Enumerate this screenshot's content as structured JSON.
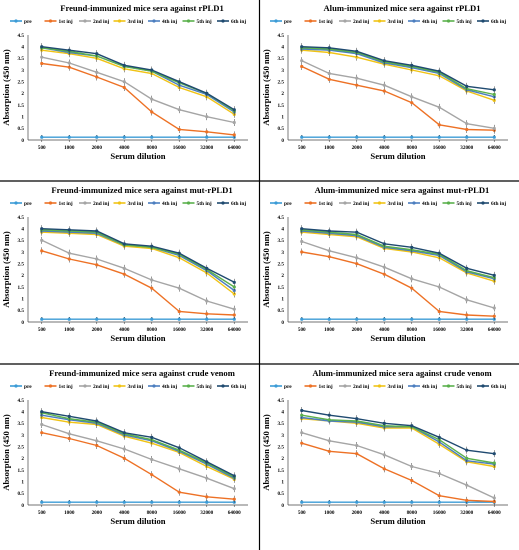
{
  "chart_data": [
    {
      "type": "line",
      "title": "Freund-immunized mice sera against rPLD1",
      "xlabel": "Serum dilution",
      "ylabel": "Absorption (450 nm)",
      "categories": [
        "500",
        "1000",
        "2000",
        "4000",
        "8000",
        "16000",
        "32000",
        "64000"
      ],
      "ylim": [
        0,
        4.5
      ],
      "yticks": [
        "0",
        "0.5",
        "1",
        "1.5",
        "2",
        "2.5",
        "3",
        "3.5",
        "4",
        "4.5"
      ],
      "category_marks": [
        "1",
        "1",
        "1",
        "1",
        "1",
        "1",
        "1",
        "1"
      ],
      "legend_position": "top",
      "series": [
        {
          "name": "pre",
          "color": "#3b9bd6",
          "values": [
            0.12,
            0.12,
            0.12,
            0.12,
            0.12,
            0.12,
            0.12,
            0.12
          ]
        },
        {
          "name": "1st inj",
          "color": "#ed7125",
          "values": [
            3.28,
            3.12,
            2.7,
            2.25,
            1.2,
            0.45,
            0.35,
            0.22
          ]
        },
        {
          "name": "2nd inj",
          "color": "#a5a5a5",
          "values": [
            3.55,
            3.3,
            2.9,
            2.5,
            1.75,
            1.3,
            1.0,
            0.75
          ]
        },
        {
          "name": "3rd inj",
          "color": "#f0c315",
          "values": [
            3.85,
            3.7,
            3.5,
            3.05,
            2.85,
            2.25,
            1.85,
            1.1
          ]
        },
        {
          "name": "4th inj",
          "color": "#4c7ebf",
          "values": [
            3.95,
            3.75,
            3.6,
            3.15,
            2.95,
            2.35,
            1.95,
            1.2
          ]
        },
        {
          "name": "5th inj",
          "color": "#5ab04c",
          "values": [
            3.95,
            3.8,
            3.6,
            3.15,
            2.95,
            2.45,
            2.0,
            1.25
          ]
        },
        {
          "name": "6th inj",
          "color": "#1f4a70",
          "values": [
            4.0,
            3.85,
            3.7,
            3.2,
            3.0,
            2.5,
            2.0,
            1.3
          ]
        }
      ]
    },
    {
      "type": "line",
      "title": "Alum-immunized mice sera against rPLD1",
      "xlabel": "Serum dilution",
      "ylabel": "Absorption (450 nm)",
      "categories": [
        "500",
        "1000",
        "2000",
        "4000",
        "8000",
        "16000",
        "32000",
        "64000"
      ],
      "ylim": [
        0,
        4.5
      ],
      "yticks": [
        "0",
        "0.5",
        "1",
        "1.5",
        "2",
        "2.5",
        "3",
        "3.5",
        "4",
        "4.5"
      ],
      "category_marks": [
        "1",
        "1",
        "1",
        "1",
        "1",
        "1",
        "1",
        "1"
      ],
      "legend_position": "top",
      "series": [
        {
          "name": "pre",
          "color": "#3b9bd6",
          "values": [
            0.12,
            0.12,
            0.12,
            0.12,
            0.12,
            0.12,
            0.12,
            0.12
          ]
        },
        {
          "name": "1st inj",
          "color": "#ed7125",
          "values": [
            3.15,
            2.6,
            2.35,
            2.1,
            1.6,
            0.65,
            0.45,
            0.42
          ]
        },
        {
          "name": "2nd inj",
          "color": "#a5a5a5",
          "values": [
            3.4,
            2.85,
            2.65,
            2.35,
            1.85,
            1.4,
            0.7,
            0.5
          ]
        },
        {
          "name": "3rd inj",
          "color": "#f0c315",
          "values": [
            3.85,
            3.75,
            3.55,
            3.25,
            3.0,
            2.75,
            2.1,
            1.7
          ]
        },
        {
          "name": "4th inj",
          "color": "#4c7ebf",
          "values": [
            3.9,
            3.85,
            3.7,
            3.3,
            3.1,
            2.85,
            2.15,
            1.85
          ]
        },
        {
          "name": "5th inj",
          "color": "#5ab04c",
          "values": [
            3.95,
            3.9,
            3.75,
            3.35,
            3.15,
            2.9,
            2.2,
            1.95
          ]
        },
        {
          "name": "6th inj",
          "color": "#1f4a70",
          "values": [
            4.0,
            3.95,
            3.8,
            3.4,
            3.2,
            2.95,
            2.3,
            2.15
          ]
        }
      ]
    },
    {
      "type": "line",
      "title": "Freund-immunized mice sera against mut-rPLD1",
      "xlabel": "Serum dilution",
      "ylabel": "Absorption (450 nm)",
      "categories": [
        "500",
        "1000",
        "2000",
        "4000",
        "8000",
        "16000",
        "32000",
        "64000"
      ],
      "ylim": [
        0,
        4.5
      ],
      "yticks": [
        "0",
        "0.5",
        "1",
        "1.5",
        "2",
        "2.5",
        "3",
        "3.5",
        "4",
        "4.5"
      ],
      "category_marks": [
        "1",
        "1",
        "1",
        "1",
        "1",
        "1",
        "1",
        "1"
      ],
      "legend_position": "top",
      "series": [
        {
          "name": "pre",
          "color": "#3b9bd6",
          "values": [
            0.12,
            0.12,
            0.12,
            0.12,
            0.12,
            0.12,
            0.12,
            0.12
          ]
        },
        {
          "name": "1st inj",
          "color": "#ed7125",
          "values": [
            3.05,
            2.7,
            2.45,
            2.05,
            1.45,
            0.45,
            0.35,
            0.3
          ]
        },
        {
          "name": "2nd inj",
          "color": "#a5a5a5",
          "values": [
            3.5,
            2.95,
            2.7,
            2.3,
            1.8,
            1.45,
            0.9,
            0.55
          ]
        },
        {
          "name": "3rd inj",
          "color": "#f0c315",
          "values": [
            3.85,
            3.8,
            3.75,
            3.25,
            3.15,
            2.75,
            2.1,
            1.2
          ]
        },
        {
          "name": "4th inj",
          "color": "#4c7ebf",
          "values": [
            3.9,
            3.85,
            3.8,
            3.3,
            3.2,
            2.85,
            2.2,
            1.35
          ]
        },
        {
          "name": "5th inj",
          "color": "#5ab04c",
          "values": [
            3.95,
            3.9,
            3.85,
            3.3,
            3.2,
            2.9,
            2.25,
            1.5
          ]
        },
        {
          "name": "6th inj",
          "color": "#1f4a70",
          "values": [
            4.0,
            3.95,
            3.9,
            3.35,
            3.25,
            2.95,
            2.3,
            1.7
          ]
        }
      ]
    },
    {
      "type": "line",
      "title": "Alum-immunized mice sera against mut-rPLD1",
      "xlabel": "Serum dilution",
      "ylabel": "Absorption (450 nm)",
      "categories": [
        "500",
        "1000",
        "2000",
        "4000",
        "8000",
        "16000",
        "32000",
        "64000"
      ],
      "ylim": [
        0,
        4.5
      ],
      "yticks": [
        "0",
        "0.5",
        "1",
        "1.5",
        "2",
        "2.5",
        "3",
        "3.5",
        "4",
        "4.5"
      ],
      "category_marks": [
        "1",
        "1",
        "1",
        "1",
        "1",
        "1",
        "1",
        "1"
      ],
      "legend_position": "top",
      "series": [
        {
          "name": "pre",
          "color": "#3b9bd6",
          "values": [
            0.12,
            0.12,
            0.12,
            0.12,
            0.12,
            0.12,
            0.12,
            0.12
          ]
        },
        {
          "name": "1st inj",
          "color": "#ed7125",
          "values": [
            3.0,
            2.8,
            2.5,
            2.05,
            1.45,
            0.45,
            0.3,
            0.25
          ]
        },
        {
          "name": "2nd inj",
          "color": "#a5a5a5",
          "values": [
            3.45,
            3.05,
            2.75,
            2.35,
            1.85,
            1.5,
            0.95,
            0.6
          ]
        },
        {
          "name": "3rd inj",
          "color": "#f0c315",
          "values": [
            3.85,
            3.75,
            3.65,
            3.15,
            3.0,
            2.75,
            2.1,
            1.75
          ]
        },
        {
          "name": "4th inj",
          "color": "#4c7ebf",
          "values": [
            3.9,
            3.8,
            3.7,
            3.2,
            3.05,
            2.85,
            2.15,
            1.85
          ]
        },
        {
          "name": "5th inj",
          "color": "#5ab04c",
          "values": [
            3.95,
            3.85,
            3.75,
            3.25,
            3.1,
            2.9,
            2.2,
            1.9
          ]
        },
        {
          "name": "6th inj",
          "color": "#1f4a70",
          "values": [
            4.0,
            3.9,
            3.85,
            3.35,
            3.2,
            2.95,
            2.3,
            2.0
          ]
        }
      ]
    },
    {
      "type": "line",
      "title": "Freund-immunized mice sera against crude venom",
      "xlabel": "Serum dilution",
      "ylabel": "Absorption (450 nm)",
      "categories": [
        "500",
        "1000",
        "2000",
        "4000",
        "8000",
        "16000",
        "32000",
        "64000"
      ],
      "ylim": [
        0,
        4.5
      ],
      "yticks": [
        "0",
        "0.5",
        "1",
        "1.5",
        "2",
        "2.5",
        "3",
        "3.5",
        "4",
        "4.5"
      ],
      "category_marks": [
        "1",
        "1",
        "1",
        "1",
        "1",
        "1",
        "1",
        "1"
      ],
      "legend_position": "top",
      "series": [
        {
          "name": "pre",
          "color": "#3b9bd6",
          "values": [
            0.12,
            0.12,
            0.12,
            0.12,
            0.12,
            0.12,
            0.12,
            0.12
          ]
        },
        {
          "name": "1st inj",
          "color": "#ed7125",
          "values": [
            3.1,
            2.85,
            2.55,
            2.0,
            1.3,
            0.55,
            0.35,
            0.25
          ]
        },
        {
          "name": "2nd inj",
          "color": "#a5a5a5",
          "values": [
            3.45,
            3.05,
            2.75,
            2.4,
            1.95,
            1.55,
            1.15,
            0.7
          ]
        },
        {
          "name": "3rd inj",
          "color": "#f0c315",
          "values": [
            3.75,
            3.55,
            3.45,
            2.95,
            2.65,
            2.25,
            1.65,
            1.1
          ]
        },
        {
          "name": "4th inj",
          "color": "#4c7ebf",
          "values": [
            3.85,
            3.65,
            3.5,
            3.0,
            2.75,
            2.3,
            1.75,
            1.15
          ]
        },
        {
          "name": "5th inj",
          "color": "#5ab04c",
          "values": [
            3.95,
            3.7,
            3.55,
            3.05,
            2.8,
            2.35,
            1.8,
            1.2
          ]
        },
        {
          "name": "6th inj",
          "color": "#1f4a70",
          "values": [
            4.0,
            3.8,
            3.6,
            3.1,
            2.9,
            2.45,
            1.85,
            1.25
          ]
        }
      ]
    },
    {
      "type": "line",
      "title": "Alum-immunized mice sera against crude venom",
      "xlabel": "Serum dilution",
      "ylabel": "Absorption (450 nm)",
      "categories": [
        "500",
        "1000",
        "2000",
        "4000",
        "8000",
        "16000",
        "32000",
        "64000"
      ],
      "ylim": [
        0,
        4.5
      ],
      "yticks": [
        "0",
        "0.5",
        "1",
        "1.5",
        "2",
        "2.5",
        "3",
        "3.5",
        "4",
        "4.5"
      ],
      "category_marks": [
        "1",
        "1",
        "1",
        "1",
        "1",
        "1",
        "1",
        "1"
      ],
      "legend_position": "top",
      "series": [
        {
          "name": "pre",
          "color": "#3b9bd6",
          "values": [
            0.12,
            0.12,
            0.12,
            0.12,
            0.12,
            0.12,
            0.12,
            0.12
          ]
        },
        {
          "name": "1st inj",
          "color": "#ed7125",
          "values": [
            2.65,
            2.3,
            2.2,
            1.55,
            1.05,
            0.4,
            0.2,
            0.15
          ]
        },
        {
          "name": "2nd inj",
          "color": "#a5a5a5",
          "values": [
            3.1,
            2.75,
            2.55,
            2.15,
            1.65,
            1.35,
            0.85,
            0.3
          ]
        },
        {
          "name": "3rd inj",
          "color": "#f0c315",
          "values": [
            3.7,
            3.6,
            3.5,
            3.3,
            3.3,
            2.6,
            1.85,
            1.65
          ]
        },
        {
          "name": "4th inj",
          "color": "#4c7ebf",
          "values": [
            3.75,
            3.6,
            3.55,
            3.35,
            3.35,
            2.7,
            1.9,
            1.75
          ]
        },
        {
          "name": "5th inj",
          "color": "#5ab04c",
          "values": [
            3.85,
            3.65,
            3.6,
            3.4,
            3.35,
            2.8,
            2.0,
            1.8
          ]
        },
        {
          "name": "6th inj",
          "color": "#1f4a70",
          "values": [
            4.05,
            3.85,
            3.7,
            3.5,
            3.4,
            2.9,
            2.35,
            2.2
          ]
        }
      ]
    }
  ]
}
